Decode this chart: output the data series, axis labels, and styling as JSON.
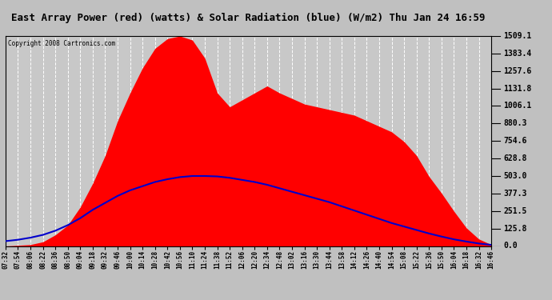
{
  "title": "East Array Power (red) (watts) & Solar Radiation (blue) (W/m2) Thu Jan 24 16:59",
  "copyright": "Copyright 2008 Cartronics.com",
  "ymax": 1509.1,
  "yticks": [
    0.0,
    125.8,
    251.5,
    377.3,
    503.0,
    628.8,
    754.6,
    880.3,
    1006.1,
    1131.8,
    1257.6,
    1383.4,
    1509.1
  ],
  "plot_bg_color": "#c8c8c8",
  "inner_bg_color": "#ffffff",
  "grid_color": "#ffffff",
  "red_color": "#ff0000",
  "blue_color": "#0000cc",
  "x_labels": [
    "07:32",
    "07:54",
    "08:06",
    "08:22",
    "08:36",
    "08:50",
    "09:04",
    "09:18",
    "09:32",
    "09:46",
    "10:00",
    "10:14",
    "10:28",
    "10:42",
    "10:56",
    "11:10",
    "11:24",
    "11:38",
    "11:52",
    "12:06",
    "12:20",
    "12:34",
    "12:48",
    "13:02",
    "13:16",
    "13:30",
    "13:44",
    "13:58",
    "14:12",
    "14:26",
    "14:40",
    "14:54",
    "15:08",
    "15:22",
    "15:36",
    "15:50",
    "16:04",
    "16:18",
    "16:32",
    "16:46"
  ],
  "power_values": [
    0,
    5,
    10,
    30,
    80,
    150,
    280,
    450,
    650,
    900,
    1100,
    1280,
    1420,
    1490,
    1509,
    1480,
    1350,
    1100,
    1000,
    1050,
    1100,
    1150,
    1100,
    1060,
    1020,
    1000,
    980,
    960,
    940,
    900,
    860,
    820,
    750,
    650,
    500,
    380,
    250,
    130,
    50,
    10
  ],
  "solar_values": [
    35,
    45,
    60,
    80,
    110,
    150,
    200,
    260,
    310,
    360,
    400,
    430,
    460,
    480,
    495,
    503,
    503,
    500,
    490,
    475,
    460,
    440,
    415,
    390,
    365,
    340,
    315,
    285,
    255,
    225,
    195,
    165,
    140,
    115,
    90,
    68,
    48,
    32,
    18,
    8
  ]
}
